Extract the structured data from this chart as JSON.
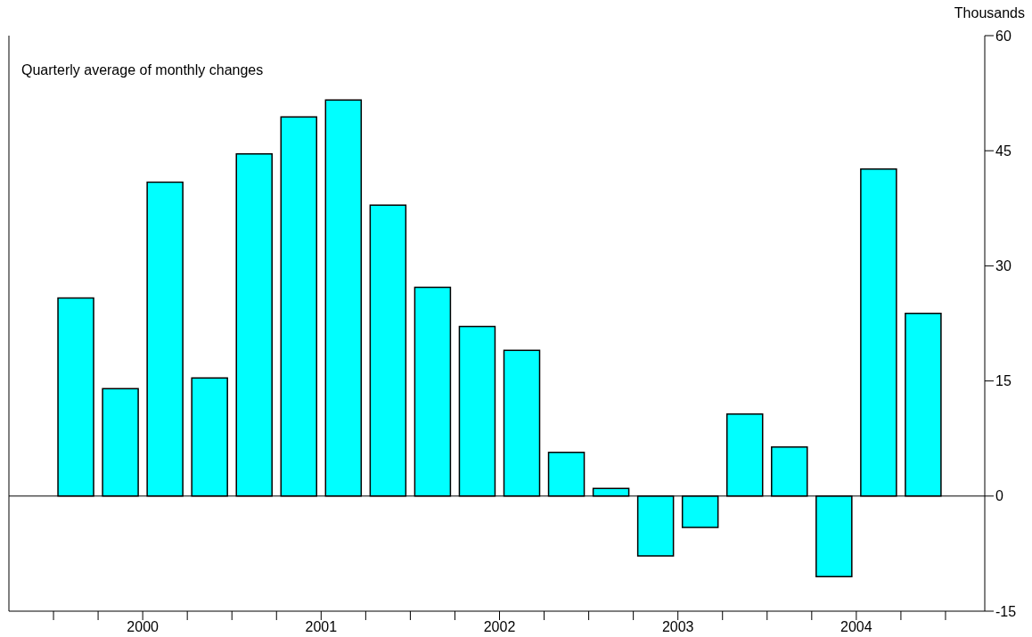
{
  "chart_data": {
    "type": "bar",
    "subtitle": "Quarterly average of monthly changes",
    "ylabel": "Thousands",
    "x": [
      2000.125,
      2000.375,
      2000.625,
      2000.875,
      2001.125,
      2001.375,
      2001.625,
      2001.875,
      2002.125,
      2002.375,
      2002.625,
      2002.875,
      2003.125,
      2003.375,
      2003.625,
      2003.875,
      2004.125,
      2004.375,
      2004.625,
      2004.875
    ],
    "values": [
      25.8,
      14.0,
      40.9,
      15.4,
      44.6,
      49.4,
      51.6,
      37.9,
      27.2,
      22.1,
      19.0,
      5.7,
      1.0,
      -7.8,
      -4.1,
      10.7,
      6.4,
      -10.5,
      42.6,
      23.8
    ],
    "color": "#00ffff",
    "xlim": [
      1999.75,
      2005.22
    ],
    "xticks": [
      {
        "value": 2000,
        "label": null
      },
      {
        "value": 2000.25,
        "label": null
      },
      {
        "value": 2000.5,
        "label": "2000"
      },
      {
        "value": 2000.75,
        "label": null
      },
      {
        "value": 2001,
        "label": null
      },
      {
        "value": 2001.25,
        "label": null
      },
      {
        "value": 2001.5,
        "label": "2001"
      },
      {
        "value": 2001.75,
        "label": null
      },
      {
        "value": 2002,
        "label": null
      },
      {
        "value": 2002.25,
        "label": null
      },
      {
        "value": 2002.5,
        "label": "2002"
      },
      {
        "value": 2002.75,
        "label": null
      },
      {
        "value": 2003,
        "label": null
      },
      {
        "value": 2003.25,
        "label": null
      },
      {
        "value": 2003.5,
        "label": "2003"
      },
      {
        "value": 2003.75,
        "label": null
      },
      {
        "value": 2004,
        "label": null
      },
      {
        "value": 2004.25,
        "label": null
      },
      {
        "value": 2004.5,
        "label": "2004"
      },
      {
        "value": 2004.75,
        "label": null
      },
      {
        "value": 2005,
        "label": null
      }
    ],
    "ylim": [
      -15,
      60
    ],
    "yticks": [
      -15,
      0,
      15,
      30,
      45,
      60
    ],
    "ref_lines": [
      {
        "axis": "y",
        "value": 0,
        "label": null
      }
    ],
    "grid": false
  }
}
